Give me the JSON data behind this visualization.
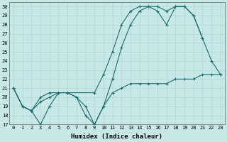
{
  "xlabel": "Humidex (Indice chaleur)",
  "ylabel": "",
  "bg_color": "#c8e8e8",
  "line_color": "#1a6b6b",
  "xlim": [
    -0.5,
    23.5
  ],
  "ylim": [
    17,
    30.5
  ],
  "yticks": [
    17,
    18,
    19,
    20,
    21,
    22,
    23,
    24,
    25,
    26,
    27,
    28,
    29,
    30
  ],
  "xticks": [
    0,
    1,
    2,
    3,
    4,
    5,
    6,
    7,
    8,
    9,
    10,
    11,
    12,
    13,
    14,
    15,
    16,
    17,
    18,
    19,
    20,
    21,
    22,
    23
  ],
  "series": [
    {
      "x": [
        0,
        1,
        2,
        3,
        4,
        5,
        6,
        7,
        8,
        9,
        10,
        11,
        12,
        13,
        14,
        15,
        16,
        17,
        18,
        19,
        20,
        21,
        22,
        23
      ],
      "y": [
        21,
        19,
        18.5,
        20,
        20.5,
        20.5,
        20.5,
        20,
        18,
        17,
        19,
        22,
        25.5,
        28,
        29.5,
        30,
        30,
        29.5,
        30,
        30,
        29,
        26.5,
        24,
        22.5
      ]
    },
    {
      "x": [
        0,
        1,
        2,
        3,
        4,
        5,
        6,
        9,
        10,
        11,
        12,
        13,
        14,
        15,
        16,
        17,
        18,
        19,
        20,
        21
      ],
      "y": [
        21,
        19,
        18.5,
        17,
        19,
        20.5,
        20.5,
        20.5,
        22.5,
        25,
        28,
        29.5,
        30,
        30,
        29.5,
        28,
        30,
        30,
        29,
        26.5
      ]
    },
    {
      "x": [
        0,
        1,
        2,
        3,
        4,
        5,
        6,
        7,
        8,
        9,
        10,
        11,
        12,
        13,
        14,
        15,
        16,
        17,
        18,
        19,
        20,
        21,
        22,
        23
      ],
      "y": [
        21,
        19,
        18.5,
        19.5,
        20,
        20.5,
        20.5,
        20,
        19,
        17,
        19,
        20.5,
        21,
        21.5,
        21.5,
        21.5,
        21.5,
        21.5,
        22,
        22,
        22,
        22.5,
        22.5,
        22.5
      ]
    }
  ],
  "figwidth": 3.2,
  "figheight": 2.0,
  "dpi": 100
}
